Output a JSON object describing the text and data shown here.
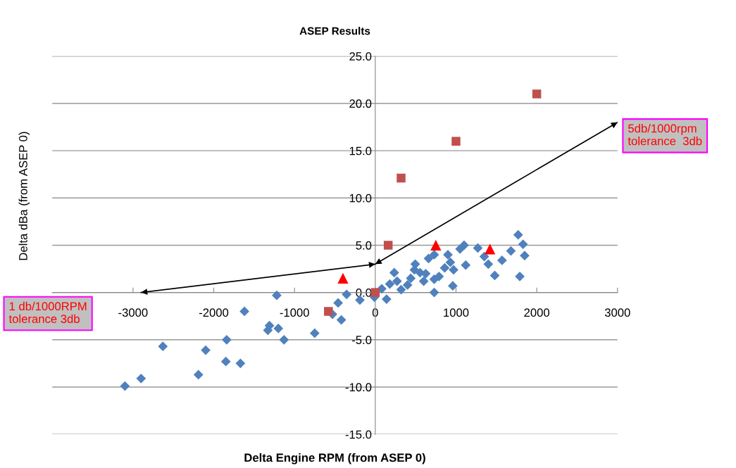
{
  "chart_data": {
    "type": "scatter",
    "title": "ASEP Results",
    "xlabel": "Delta Engine RPM (from ASEP 0)",
    "ylabel": "Delta dBa (from ASEP 0)",
    "xlim": [
      -4000,
      3000
    ],
    "xticks": [
      -3000,
      -2000,
      -1000,
      0,
      1000,
      2000,
      3000
    ],
    "ylim": [
      -15,
      25
    ],
    "yticks": [
      {
        "value": -15,
        "label": "-15.0"
      },
      {
        "value": -10,
        "label": "-10.0"
      },
      {
        "value": -5,
        "label": "-5.0"
      },
      {
        "value": 0,
        "label": "0.0"
      },
      {
        "value": 5,
        "label": "5.0"
      },
      {
        "value": 10,
        "label": "10.0"
      },
      {
        "value": 15,
        "label": "15.0"
      },
      {
        "value": 20,
        "label": "20.0"
      },
      {
        "value": 25,
        "label": "25.0"
      }
    ],
    "grid": "y",
    "legend": false,
    "annotations": [
      "1 db/1000RPM\ntolerance 3db",
      "5db/1000rpm\ntolerance  3db"
    ],
    "series": [
      {
        "marker": "diamond",
        "color": "#4f81bd",
        "x": [
          -3100,
          -2900,
          -2630,
          -2190,
          -2100,
          -1840,
          -1850,
          -1670,
          -1620,
          -1330,
          -1310,
          -1220,
          -1200,
          -1130,
          -750,
          -530,
          -460,
          -420,
          -355,
          -190,
          -10,
          140,
          80,
          180,
          235,
          270,
          320,
          400,
          440,
          485,
          495,
          555,
          600,
          625,
          730,
          730,
          660,
          730,
          790,
          860,
          900,
          930,
          970,
          960,
          1050,
          1100,
          1120,
          1270,
          1350,
          1400,
          1480,
          1570,
          1680,
          1770,
          1830,
          1850,
          1790
        ],
        "values": [
          -9.9,
          -9.1,
          -5.7,
          -8.7,
          -6.1,
          -5.0,
          -7.3,
          -7.5,
          -2.0,
          -4.0,
          -3.5,
          -0.3,
          -3.8,
          -5.0,
          -4.3,
          -2.3,
          -1.1,
          -2.9,
          -0.2,
          -0.8,
          -0.5,
          -0.7,
          0.4,
          0.9,
          2.1,
          1.2,
          0.3,
          0.8,
          1.5,
          2.4,
          3.0,
          2.1,
          1.2,
          2.0,
          0.0,
          1.4,
          3.6,
          4.0,
          1.7,
          2.6,
          4.0,
          3.2,
          2.4,
          0.7,
          4.6,
          5.0,
          2.9,
          4.7,
          3.8,
          3.0,
          1.8,
          3.4,
          4.4,
          6.1,
          5.1,
          3.9,
          1.7
        ]
      },
      {
        "marker": "triangle",
        "color": "#ff0000",
        "x": [
          -400,
          750,
          1420
        ],
        "values": [
          1.5,
          5.0,
          4.6
        ]
      },
      {
        "marker": "square",
        "color": "#c0504d",
        "x": [
          -580,
          0,
          160,
          320,
          1000,
          2000
        ],
        "values": [
          -2.0,
          0.0,
          5.0,
          12.1,
          16.0,
          21.0
        ]
      },
      {
        "type": "line",
        "marker": "none",
        "color": "#000000",
        "x": [
          -2900,
          0,
          3000
        ],
        "values": [
          0,
          3,
          18
        ]
      }
    ]
  }
}
